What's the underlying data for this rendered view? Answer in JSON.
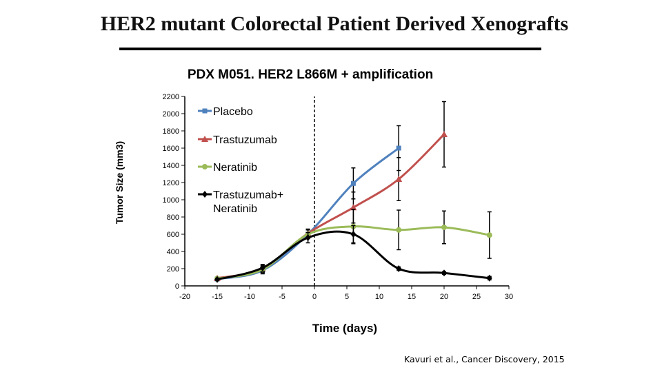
{
  "slide": {
    "title": "HER2 mutant Colorectal Patient Derived Xenografts",
    "citation": "Kavuri et al., Cancer Discovery, 2015"
  },
  "chart_data": {
    "type": "line",
    "title": "PDX M051. HER2 L866M + amplification",
    "xlabel": "Time (days)",
    "ylabel": "Tumor Size (mm3)",
    "xlim": [
      -20,
      30
    ],
    "ylim": [
      0,
      2200
    ],
    "xticks": [
      -20,
      -15,
      -10,
      -5,
      0,
      5,
      10,
      15,
      20,
      25,
      30
    ],
    "yticks": [
      0,
      200,
      400,
      600,
      800,
      1000,
      1200,
      1400,
      1600,
      1800,
      2000,
      2200
    ],
    "vertical_reference_line": {
      "x": 0,
      "style": "dashed"
    },
    "legend_position": "top-left",
    "series": [
      {
        "name": "Placebo",
        "color": "#4f81bd",
        "marker": "square",
        "x": [
          -15,
          -8,
          -1,
          6,
          13
        ],
        "y": [
          80,
          180,
          600,
          1190,
          1600
        ],
        "err": [
          10,
          40,
          50,
          180,
          260
        ]
      },
      {
        "name": "Trastuzumab",
        "color": "#c0504d",
        "marker": "triangle",
        "x": [
          -15,
          -8,
          -1,
          6,
          13,
          20
        ],
        "y": [
          90,
          200,
          610,
          910,
          1240,
          1760
        ],
        "err": [
          10,
          40,
          50,
          180,
          250,
          380
        ]
      },
      {
        "name": "Neratinib",
        "color": "#9bbb59",
        "marker": "circle",
        "x": [
          -15,
          -8,
          -1,
          6,
          13,
          20,
          27
        ],
        "y": [
          85,
          190,
          600,
          690,
          650,
          680,
          590
        ],
        "err": [
          10,
          40,
          50,
          200,
          230,
          190,
          270
        ]
      },
      {
        "name": "Trastuzumab+ Neratinib",
        "legend_lines": [
          "Trastuzumab+",
          "Neratinib"
        ],
        "color": "#000000",
        "marker": "diamond",
        "x": [
          -15,
          -8,
          -1,
          6,
          13,
          20,
          27
        ],
        "y": [
          75,
          210,
          560,
          600,
          200,
          150,
          90
        ],
        "err": [
          10,
          40,
          60,
          100,
          20,
          15,
          20
        ]
      }
    ]
  }
}
